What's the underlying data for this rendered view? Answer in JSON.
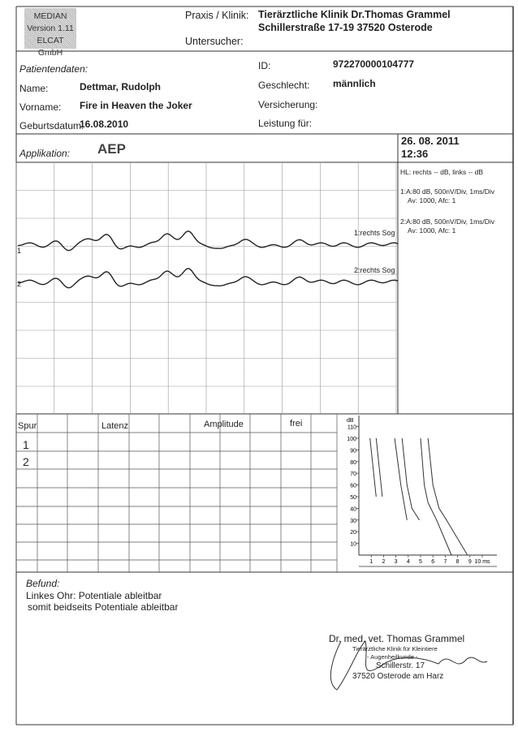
{
  "logo": {
    "line1": "MEDIAN",
    "line2": "Version 1.11",
    "line3": "ELCAT GmbH"
  },
  "header": {
    "praxis_label": "Praxis / Klinik:",
    "praxis_line1": "Tierärztliche Klinik  Dr.Thomas Grammel",
    "praxis_line2": "Schillerstraße 17-19  37520 Osterode",
    "untersucher_label": "Untersucher:"
  },
  "patient": {
    "section_label": "Patientendaten:",
    "name_label": "Name:",
    "name": "Dettmar, Rudolph",
    "vorname_label": "Vorname:",
    "vorname": "Fire in Heaven the Joker",
    "geburt_label": "Geburtsdatum:",
    "geburt": "16.08.2010",
    "id_label": "ID:",
    "id": "972270000104777",
    "geschlecht_label": "Geschlecht:",
    "geschlecht": "männlich",
    "versicherung_label": "Versicherung:",
    "leistung_label": "Leistung für:"
  },
  "application": {
    "label": "Applikation:",
    "value": "AEP",
    "date": "26. 08. 2011",
    "time": "12:36"
  },
  "settings": {
    "hl": "HL: rechts -- dB, links -- dB",
    "trace1a": "1:A:80 dB, 500nV/Div, 1ms/Div",
    "trace1b": "Av: 1000, Afc: 1",
    "trace2a": "2:A:80 dB, 500nV/Div, 1ms/Div",
    "trace2b": "Av: 1000, Afc: 1"
  },
  "traces": {
    "trace1_label": "1:rechts Sog",
    "trace2_label": "2:rechts Sog",
    "trace1_num": "1",
    "trace2_num": "2"
  },
  "table": {
    "headers": [
      "Spur",
      "Latenz",
      "Amplitude",
      "frei"
    ],
    "rows": [
      "1",
      "2"
    ]
  },
  "chart_data": {
    "type": "line",
    "ylabel": "dB",
    "xunit": "ms",
    "xlim": [
      0,
      10
    ],
    "ylim": [
      0,
      115
    ],
    "xticks": [
      "1",
      "2",
      "3",
      "4",
      "5",
      "6",
      "7",
      "8",
      "9",
      "10 ms"
    ],
    "yticks": [
      "10",
      "20",
      "30",
      "40",
      "50",
      "60",
      "70",
      "80",
      "90",
      "100",
      "110"
    ],
    "series": [
      {
        "points": [
          [
            0.9,
            100
          ],
          [
            1.4,
            50
          ]
        ]
      },
      {
        "points": [
          [
            1.4,
            100
          ],
          [
            1.9,
            50
          ]
        ]
      },
      {
        "points": [
          [
            2.9,
            100
          ],
          [
            3.4,
            60
          ],
          [
            3.9,
            30
          ]
        ]
      },
      {
        "points": [
          [
            3.5,
            100
          ],
          [
            3.9,
            60
          ],
          [
            4.3,
            40
          ],
          [
            4.9,
            30
          ]
        ]
      },
      {
        "points": [
          [
            5.0,
            100
          ],
          [
            5.3,
            60
          ],
          [
            5.6,
            45
          ],
          [
            6.3,
            30
          ],
          [
            7.5,
            0
          ]
        ]
      },
      {
        "points": [
          [
            5.6,
            100
          ],
          [
            6.0,
            60
          ],
          [
            6.5,
            40
          ],
          [
            7.1,
            30
          ],
          [
            8.8,
            0
          ]
        ]
      }
    ]
  },
  "befund": {
    "label": "Befund:",
    "line1": "Linkes Ohr: Potentiale ableitbar",
    "line2": "somit beidseits Potentiale ableitbar"
  },
  "signature": {
    "name": "Dr. med. vet. Thomas Grammel",
    "stamp1": "Tierärztliche Klinik für Kleintiere",
    "stamp2": "- Augenheilkunde -",
    "stamp3": "Schillerstr. 17",
    "stamp4": "37520 Osterode am Harz"
  }
}
